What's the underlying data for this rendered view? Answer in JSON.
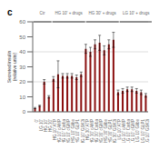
{
  "chart_data": {
    "type": "bar",
    "title": "c",
    "ylabel": "Secreted insulin\n(relative units)",
    "categories": [
      "0'",
      "LG 10'",
      "HG 10'",
      "HG 30'",
      "HG 10' ATP",
      "HG 10' cAMP",
      "HG 10' Carba",
      "HG 10' cGMP",
      "HG 10' Glibe",
      "HG 10' GLP1",
      "HG 10' GSK3i",
      "HG 30' ATP",
      "HG 30' cAMP",
      "HG 30' Carba",
      "HG 30' cGMP",
      "HG 30' Glibe",
      "HG 30' GLP1",
      "HG 30' GSK3i",
      "LG 10' ATP",
      "LG 10' cAMP",
      "LG 10' Carba",
      "LG 10' cGMP",
      "LG 10' Glibe",
      "LG 10' GLP1",
      "LG 10' GSK3i"
    ],
    "values": [
      2.5,
      4,
      20,
      10,
      22,
      25,
      24,
      24,
      24,
      23,
      25,
      42,
      40,
      45,
      46,
      41,
      45,
      48,
      13,
      14,
      15,
      15,
      14,
      13,
      11
    ],
    "errors": [
      0.4,
      0.4,
      1.5,
      0.8,
      1.5,
      9,
      1.5,
      1.5,
      1.5,
      1.5,
      1.5,
      3,
      3,
      3,
      5,
      3,
      3,
      5,
      1.5,
      1.5,
      1.5,
      1.5,
      1.5,
      1.5,
      1.2
    ],
    "color": "#8B1010",
    "ylim": [
      0,
      60
    ],
    "yticks": [
      0,
      10,
      20,
      30,
      40,
      50,
      60
    ],
    "grid": true,
    "annotations": [
      {
        "text": "Ctr",
        "from": "0'",
        "to": "HG 30'"
      },
      {
        "text": "HG 10' + drugs",
        "from": "HG 10' ATP",
        "to": "HG 10' GSK3i"
      },
      {
        "text": "HG 30' + drugs",
        "from": "HG 30' ATP",
        "to": "HG 30' GSK3i"
      },
      {
        "text": "LG 10' + drugs",
        "from": "LG 10' ATP",
        "to": "LG 10' GSK3i"
      }
    ]
  }
}
